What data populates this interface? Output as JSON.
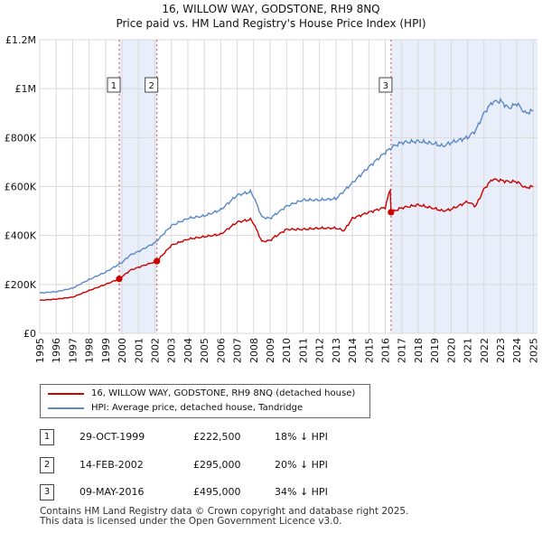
{
  "chart_data": {
    "type": "line",
    "title": "16, WILLOW WAY, GODSTONE, RH9 8NQ",
    "subtitle": "Price paid vs. HM Land Registry's House Price Index (HPI)",
    "xlim": [
      1995,
      2025.25
    ],
    "ylim": [
      0,
      1200000
    ],
    "y_ticks": [
      0,
      200000,
      400000,
      600000,
      800000,
      1000000,
      1200000
    ],
    "y_tick_labels": [
      "£0",
      "£200K",
      "£400K",
      "£600K",
      "£800K",
      "£1M",
      "£1.2M"
    ],
    "x_ticks": [
      "1995",
      "1996",
      "1997",
      "1998",
      "1999",
      "2000",
      "2001",
      "2002",
      "2003",
      "2004",
      "2005",
      "2006",
      "2007",
      "2008",
      "2009",
      "2010",
      "2011",
      "2012",
      "2013",
      "2014",
      "2015",
      "2016",
      "2017",
      "2018",
      "2019",
      "2020",
      "2021",
      "2022",
      "2023",
      "2024",
      "2025"
    ],
    "grid": true,
    "shaded_periods": [
      [
        1999.83,
        2002.12
      ],
      [
        2016.35,
        2025.25
      ]
    ],
    "series": [
      {
        "name": "16, WILLOW WAY, GODSTONE, RH9 8NQ (detached house)",
        "color": "#cc0000",
        "x": [
          1995,
          1996,
          1997,
          1998,
          1999,
          1999.83,
          2000.5,
          2001,
          2002.12,
          2003,
          2004,
          2005,
          2006,
          2007,
          2007.8,
          2008,
          2008.5,
          2009,
          2009.3,
          2010,
          2011,
          2012,
          2013,
          2013.5,
          2014,
          2015,
          2016,
          2016.3,
          2016.35,
          2017,
          2018,
          2019,
          2019.5,
          2020,
          2021,
          2021.5,
          2022,
          2022.5,
          2023,
          2023.5,
          2024,
          2024.5,
          2025
        ],
        "y": [
          135000,
          140000,
          148000,
          175000,
          200000,
          222500,
          258000,
          270000,
          295000,
          360000,
          385000,
          395000,
          405000,
          455000,
          465000,
          450000,
          375000,
          380000,
          395000,
          425000,
          425000,
          430000,
          430000,
          420000,
          470000,
          495000,
          515000,
          590000,
          495000,
          513000,
          525000,
          510000,
          500000,
          507000,
          538000,
          520000,
          590000,
          630000,
          625000,
          620000,
          620000,
          595000,
          600000
        ]
      },
      {
        "name": "HPI: Average price, detached house, Tandridge",
        "color": "#5b8ac6",
        "x": [
          1995,
          1996,
          1997,
          1998,
          1999,
          2000,
          2000.5,
          2001,
          2002,
          2003,
          2004,
          2005,
          2006,
          2007,
          2007.8,
          2008,
          2008.5,
          2009,
          2009.3,
          2010,
          2011,
          2012,
          2013,
          2014,
          2015,
          2016,
          2016.5,
          2017,
          2018,
          2019,
          2019.5,
          2020,
          2021,
          2021.5,
          2022,
          2022.5,
          2023,
          2023.5,
          2024,
          2024.5,
          2025
        ],
        "y": [
          165000,
          170000,
          185000,
          220000,
          250000,
          290000,
          320000,
          335000,
          370000,
          440000,
          470000,
          480000,
          505000,
          565000,
          578000,
          560000,
          475000,
          470000,
          485000,
          520000,
          545000,
          545000,
          550000,
          615000,
          680000,
          740000,
          765000,
          780000,
          785000,
          775000,
          765000,
          780000,
          800000,
          830000,
          900000,
          945000,
          950000,
          920000,
          940000,
          900000,
          910000
        ]
      }
    ],
    "transactions": [
      {
        "label": "1",
        "x": 1999.83,
        "y": 222500
      },
      {
        "label": "2",
        "x": 2002.12,
        "y": 295000
      },
      {
        "label": "3",
        "x": 2016.35,
        "y": 495000
      }
    ]
  },
  "legend": {
    "property_label": "16, WILLOW WAY, GODSTONE, RH9 8NQ (detached house)",
    "hpi_label": "HPI: Average price, detached house, Tandridge"
  },
  "transactions_table": [
    {
      "num": "1",
      "date": "29-OCT-1999",
      "price": "£222,500",
      "hpi": "18% ↓ HPI"
    },
    {
      "num": "2",
      "date": "14-FEB-2002",
      "price": "£295,000",
      "hpi": "20% ↓ HPI"
    },
    {
      "num": "3",
      "date": "09-MAY-2016",
      "price": "£495,000",
      "hpi": "34% ↓ HPI"
    }
  ],
  "footer": {
    "line1": "Contains HM Land Registry data © Crown copyright and database right 2025.",
    "line2": "This data is licensed under the Open Government Licence v3.0."
  },
  "colors": {
    "property": "#cc0000",
    "hpi": "#5b8ac6",
    "shade": "#e8eefa",
    "grid": "#d9d9d9"
  }
}
